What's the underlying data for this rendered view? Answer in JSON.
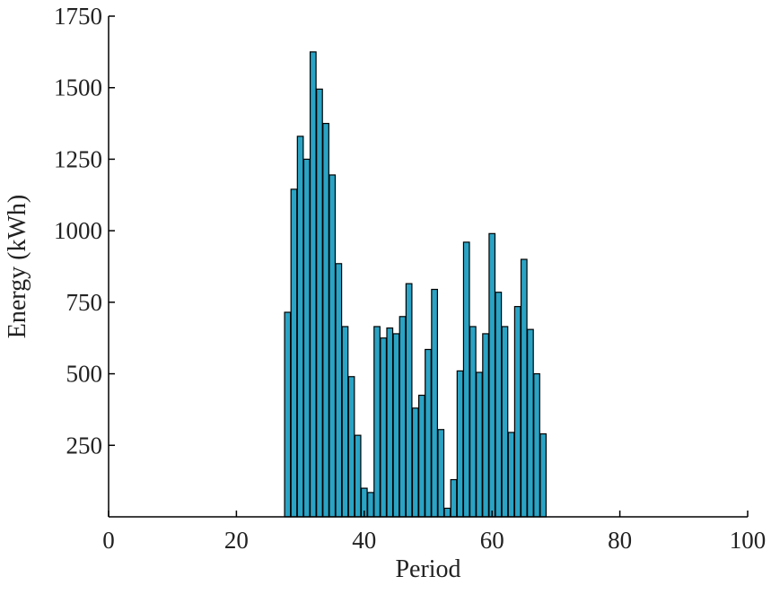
{
  "chart_data": {
    "type": "bar",
    "title": "",
    "xlabel": "Period",
    "ylabel": "Energy (kWh)",
    "xlim": [
      0,
      100
    ],
    "ylim": [
      0,
      1750
    ],
    "xticks": [
      0,
      20,
      40,
      60,
      80,
      100
    ],
    "yticks": [
      250,
      500,
      750,
      1000,
      1250,
      1500,
      1750
    ],
    "grid": false,
    "legend": "none",
    "bar_color": "#2aa3c4",
    "x": [
      28,
      29,
      30,
      31,
      32,
      33,
      34,
      35,
      36,
      37,
      38,
      39,
      40,
      41,
      42,
      43,
      44,
      45,
      46,
      47,
      48,
      49,
      50,
      51,
      52,
      53,
      54,
      55,
      56,
      57,
      58,
      59,
      60,
      61,
      62,
      63,
      64,
      65,
      66,
      67,
      68
    ],
    "values": [
      715,
      1145,
      1330,
      1250,
      1625,
      1495,
      1375,
      1195,
      885,
      665,
      490,
      285,
      100,
      85,
      665,
      625,
      660,
      640,
      700,
      815,
      380,
      425,
      585,
      795,
      305,
      30,
      130,
      510,
      960,
      665,
      505,
      640,
      990,
      785,
      665,
      295,
      735,
      900,
      655,
      500,
      290
    ]
  }
}
